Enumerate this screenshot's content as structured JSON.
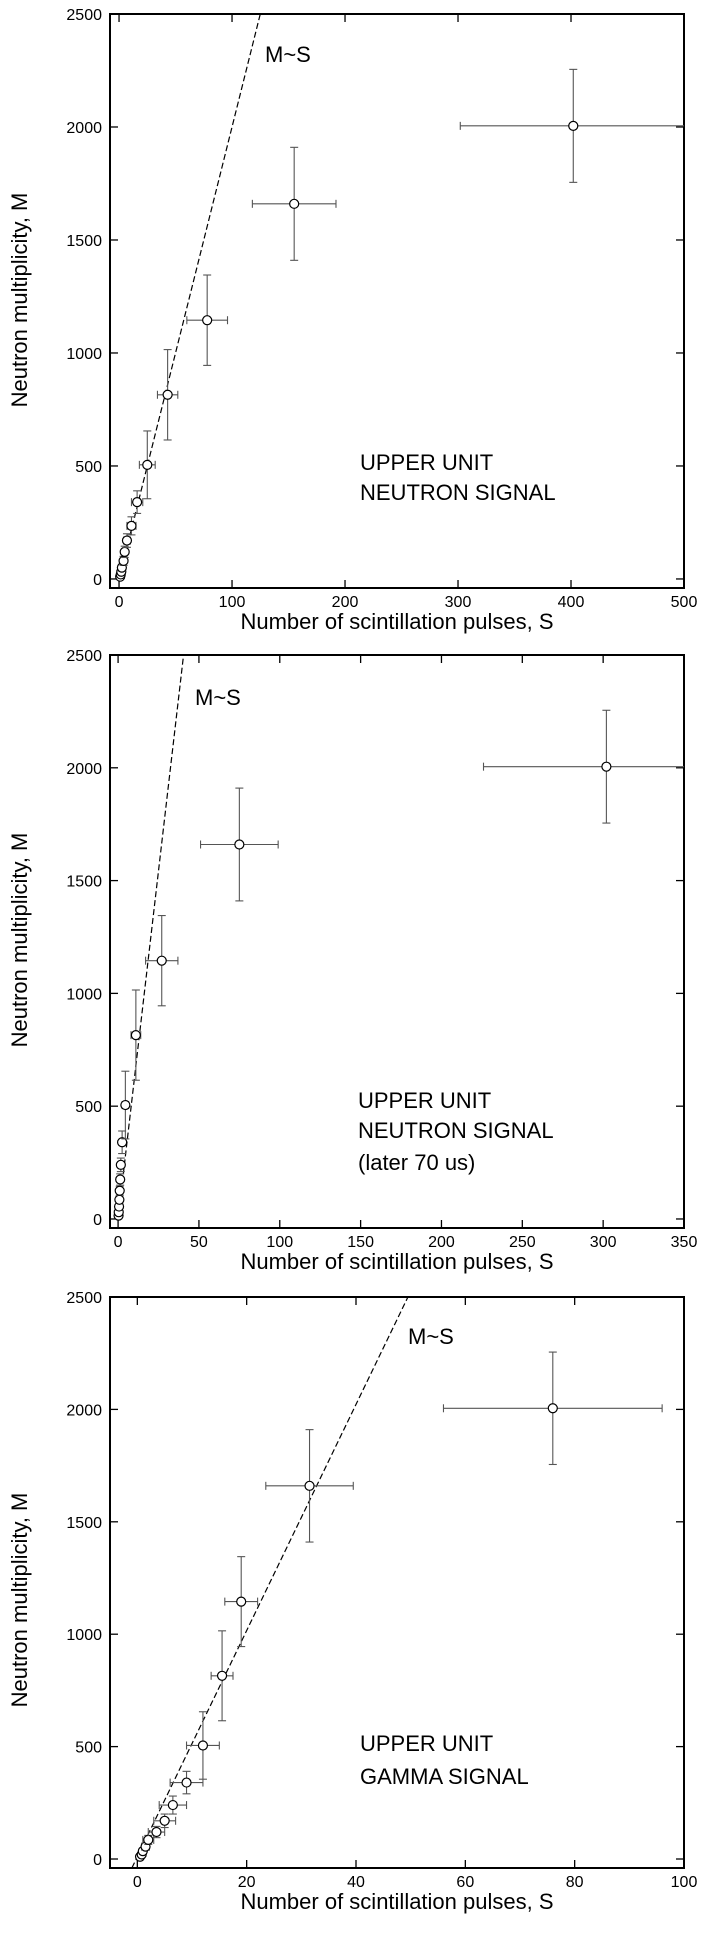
{
  "chart_data": [
    {
      "type": "scatter",
      "title": "",
      "xlabel": "Number of scintillation pulses,   S",
      "ylabel": "Neutron multiplicity,   M",
      "xlim": [
        -8,
        500
      ],
      "ylim": [
        -40,
        2500
      ],
      "xticks": [
        0,
        100,
        200,
        300,
        400,
        500
      ],
      "yticks": [
        0,
        500,
        1000,
        1500,
        2000,
        2500
      ],
      "annotations": [
        "UPPER UNIT",
        "NEUTRON SIGNAL"
      ],
      "fit_label": "M~S",
      "fit_line": {
        "x": [
          0,
          125
        ],
        "y": [
          0,
          2500
        ]
      },
      "points": [
        {
          "x": 1,
          "y": 10,
          "xerr": 0.5,
          "yerr": 8
        },
        {
          "x": 1.5,
          "y": 20,
          "xerr": 0.7,
          "yerr": 10
        },
        {
          "x": 2,
          "y": 32,
          "xerr": 1,
          "yerr": 12
        },
        {
          "x": 2.5,
          "y": 50,
          "xerr": 1,
          "yerr": 15
        },
        {
          "x": 4,
          "y": 80,
          "xerr": 1.5,
          "yerr": 20
        },
        {
          "x": 5,
          "y": 120,
          "xerr": 2,
          "yerr": 25
        },
        {
          "x": 7,
          "y": 170,
          "xerr": 3,
          "yerr": 30
        },
        {
          "x": 11,
          "y": 235,
          "xerr": 4,
          "yerr": 40
        },
        {
          "x": 16,
          "y": 340,
          "xerr": 5,
          "yerr": 50
        },
        {
          "x": 25,
          "y": 505,
          "xerr": 7,
          "yerr": 150
        },
        {
          "x": 43,
          "y": 815,
          "xerr": 9,
          "yerr": 200
        },
        {
          "x": 78,
          "y": 1145,
          "xerr": 18,
          "yerr": 200
        },
        {
          "x": 155,
          "y": 1660,
          "xerr": 37,
          "yerr": 250
        },
        {
          "x": 402,
          "y": 2005,
          "xerr": 100,
          "yerr": 250
        }
      ]
    },
    {
      "type": "scatter",
      "title": "",
      "xlabel": "Number of scintillation pulses,   S",
      "ylabel": "Neutron multiplicity,   M",
      "xlim": [
        -5,
        350
      ],
      "ylim": [
        -40,
        2500
      ],
      "xticks": [
        0,
        50,
        100,
        150,
        200,
        250,
        300,
        350
      ],
      "yticks": [
        0,
        500,
        1000,
        1500,
        2000,
        2500
      ],
      "annotations": [
        "UPPER UNIT",
        "NEUTRON SIGNAL",
        "(later 70 us)"
      ],
      "fit_label": "M~S",
      "fit_line": {
        "x": [
          0,
          40.5
        ],
        "y": [
          0,
          2500
        ]
      },
      "points": [
        {
          "x": 0.3,
          "y": 15,
          "xerr": 0.3,
          "yerr": 8
        },
        {
          "x": 0.4,
          "y": 30,
          "xerr": 0.3,
          "yerr": 10
        },
        {
          "x": 0.6,
          "y": 55,
          "xerr": 0.4,
          "yerr": 12
        },
        {
          "x": 0.8,
          "y": 85,
          "xerr": 0.5,
          "yerr": 15
        },
        {
          "x": 1,
          "y": 125,
          "xerr": 0.6,
          "yerr": 20
        },
        {
          "x": 1.3,
          "y": 175,
          "xerr": 0.8,
          "yerr": 25
        },
        {
          "x": 1.7,
          "y": 240,
          "xerr": 1,
          "yerr": 30
        },
        {
          "x": 2.5,
          "y": 340,
          "xerr": 1.5,
          "yerr": 50
        },
        {
          "x": 4.5,
          "y": 505,
          "xerr": 2,
          "yerr": 150
        },
        {
          "x": 11,
          "y": 815,
          "xerr": 3,
          "yerr": 200
        },
        {
          "x": 27,
          "y": 1145,
          "xerr": 10,
          "yerr": 200
        },
        {
          "x": 75,
          "y": 1660,
          "xerr": 24,
          "yerr": 250
        },
        {
          "x": 302,
          "y": 2005,
          "xerr": 76,
          "yerr": 250
        }
      ]
    },
    {
      "type": "scatter",
      "title": "",
      "xlabel": "Number of scintillation pulses,   S",
      "ylabel": "Neutron multiplicity,   M",
      "xlim": [
        -5,
        100
      ],
      "ylim": [
        -40,
        2500
      ],
      "xticks": [
        0,
        20,
        40,
        60,
        80,
        100
      ],
      "yticks": [
        0,
        500,
        1000,
        1500,
        2000,
        2500
      ],
      "annotations": [
        "UPPER UNIT",
        "GAMMA SIGNAL"
      ],
      "fit_label": "M~S",
      "fit_line": {
        "x": [
          -1,
          49.5
        ],
        "y": [
          -40,
          2500
        ]
      },
      "points": [
        {
          "x": 0.5,
          "y": 10,
          "xerr": 0.3,
          "yerr": 8
        },
        {
          "x": 0.8,
          "y": 20,
          "xerr": 0.4,
          "yerr": 10
        },
        {
          "x": 1,
          "y": 35,
          "xerr": 0.5,
          "yerr": 12
        },
        {
          "x": 1.5,
          "y": 55,
          "xerr": 0.7,
          "yerr": 15
        },
        {
          "x": 2,
          "y": 85,
          "xerr": 1,
          "yerr": 20
        },
        {
          "x": 3.5,
          "y": 120,
          "xerr": 1.5,
          "yerr": 25
        },
        {
          "x": 5,
          "y": 170,
          "xerr": 2,
          "yerr": 30
        },
        {
          "x": 6.5,
          "y": 240,
          "xerr": 2.5,
          "yerr": 40
        },
        {
          "x": 9,
          "y": 340,
          "xerr": 3,
          "yerr": 50
        },
        {
          "x": 12,
          "y": 505,
          "xerr": 3,
          "yerr": 150
        },
        {
          "x": 15.5,
          "y": 815,
          "xerr": 2,
          "yerr": 200
        },
        {
          "x": 19,
          "y": 1145,
          "xerr": 3,
          "yerr": 200
        },
        {
          "x": 31.5,
          "y": 1660,
          "xerr": 8,
          "yerr": 250
        },
        {
          "x": 76,
          "y": 2005,
          "xerr": 20,
          "yerr": 250
        }
      ]
    }
  ]
}
